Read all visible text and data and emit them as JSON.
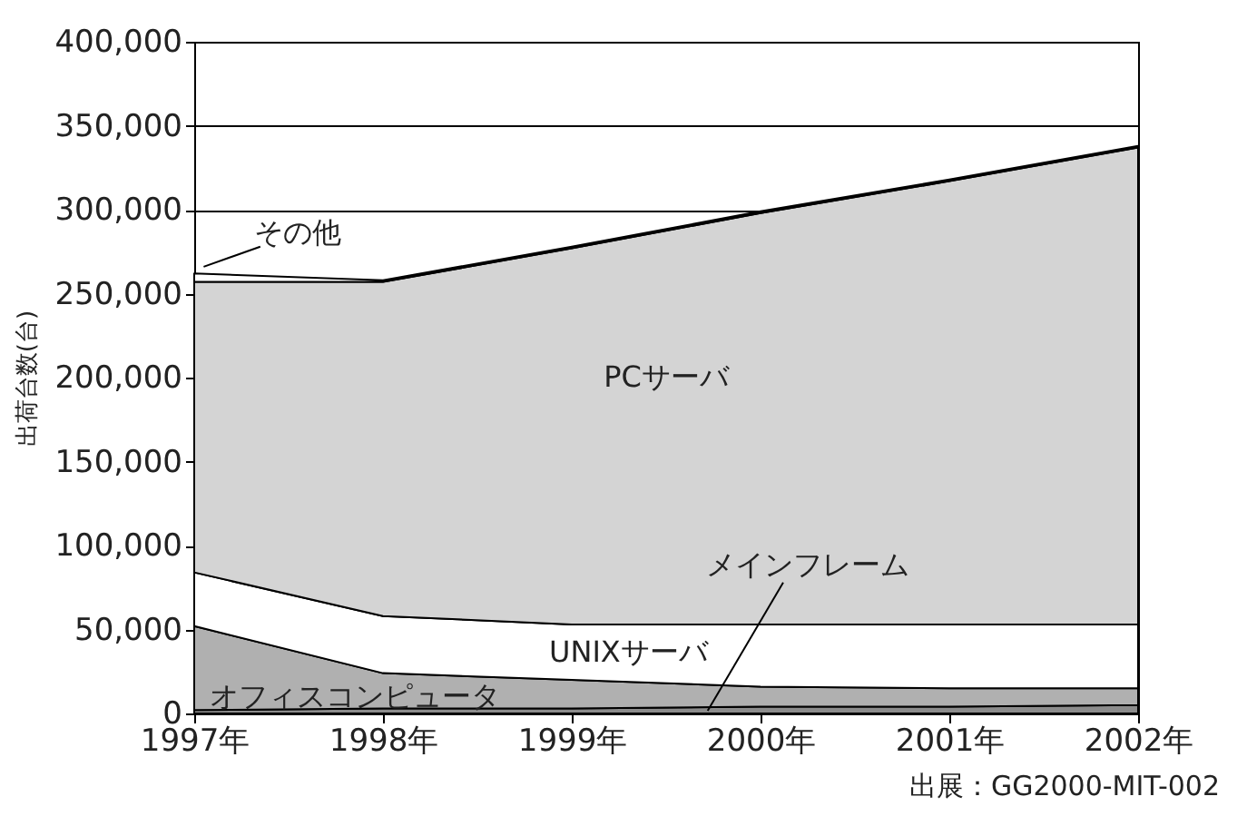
{
  "chart_data": {
    "type": "area",
    "stacked": true,
    "ylabel": "出荷台数(台)",
    "categories": [
      "1997年",
      "1998年",
      "1999年",
      "2000年",
      "2001年",
      "2002年"
    ],
    "series": [
      {
        "name": "メインフレーム",
        "color": "#8c8c8c",
        "values": [
          2000,
          3000,
          3000,
          4000,
          4000,
          5000
        ]
      },
      {
        "name": "オフィスコンピュータ",
        "color": "#b0b0b0",
        "values": [
          50000,
          21000,
          17000,
          12000,
          11000,
          10000
        ]
      },
      {
        "name": "UNIXサーバ",
        "color": "#ffffff",
        "values": [
          32000,
          34000,
          33000,
          37000,
          38000,
          38000
        ]
      },
      {
        "name": "PCサーバ",
        "color": "#d4d4d4",
        "values": [
          173000,
          199000,
          224000,
          245000,
          264000,
          284000
        ]
      },
      {
        "name": "その他",
        "color": "#ffffff",
        "values": [
          5000,
          1000,
          1000,
          1000,
          1000,
          1000
        ]
      }
    ],
    "ylim": [
      0,
      400000
    ],
    "yticks": [
      0,
      {
        "value": 50000,
        "label": "50,000"
      },
      {
        "value": 100000,
        "label": "100,000"
      },
      {
        "value": 150000,
        "label": "150,000"
      },
      {
        "value": 200000,
        "label": "200,000"
      },
      {
        "value": 250000,
        "label": "250,000"
      },
      {
        "value": 300000,
        "label": "300,000"
      },
      {
        "value": 350000,
        "label": "350,000"
      },
      {
        "value": 400000,
        "label": "400,000"
      }
    ],
    "grid": "y",
    "legend": false,
    "annotations": [
      "出展：GG2000-MIT-002"
    ]
  }
}
